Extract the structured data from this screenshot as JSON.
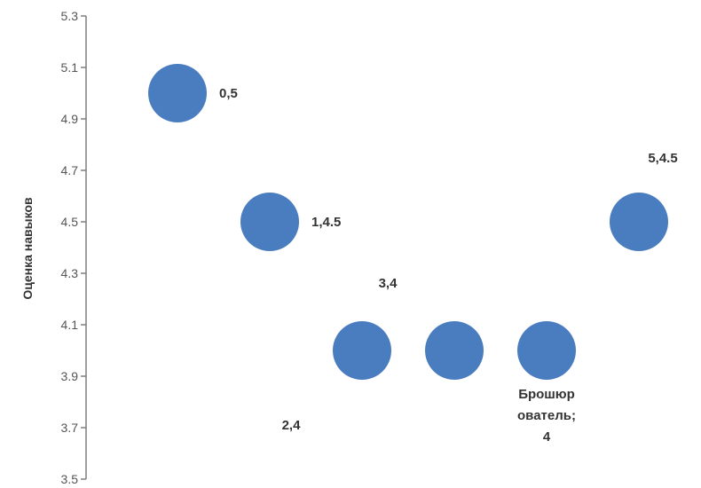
{
  "chart_data": {
    "type": "scatter",
    "title": "",
    "xlabel": "",
    "ylabel": "Оценка навыков",
    "ylim": [
      3.5,
      5.3
    ],
    "xlim": [
      -0.8,
      5.3
    ],
    "yticks": [
      "3.5",
      "3.7",
      "3.9",
      "4.1",
      "4.3",
      "4.5",
      "4.7",
      "4.9",
      "5.1",
      "5.3"
    ],
    "grid": false,
    "series": [
      {
        "color": "#4a7dbf",
        "points": [
          {
            "x": 0,
            "y": 5,
            "label": [
              "0,5"
            ]
          },
          {
            "x": 1,
            "y": 4.5,
            "label": [
              "1,4.5"
            ]
          },
          {
            "x": 2,
            "y": 4,
            "label": [
              "2,4"
            ]
          },
          {
            "x": 3,
            "y": 4,
            "label": [
              "3,4"
            ]
          },
          {
            "x": 4,
            "y": 4,
            "label": [
              "Брошюр",
              "ователь;",
              "4"
            ]
          },
          {
            "x": 5,
            "y": 4.5,
            "label": [
              "5,4.5"
            ]
          }
        ]
      }
    ]
  }
}
